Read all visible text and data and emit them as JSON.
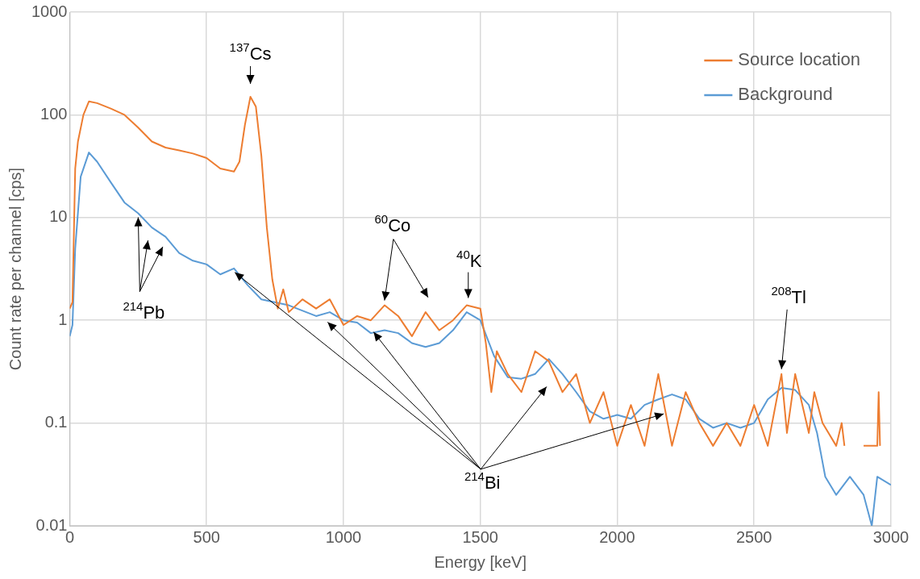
{
  "chart_data": {
    "type": "line",
    "xlabel": "Energy [keV]",
    "ylabel": "Count rate per channel [cps]",
    "log": "y",
    "grid": true,
    "legend": "top right",
    "marker": "none",
    "line_style": "solid",
    "xlim": [
      0,
      3000
    ],
    "xticks": [
      0,
      500,
      1000,
      1500,
      2000,
      2500,
      3000
    ],
    "ylim": [
      0.01,
      1000
    ],
    "yticks": [
      0.01,
      0.1,
      1,
      10,
      100,
      1000
    ],
    "series": [
      {
        "name": "Source location",
        "color": "#ed7d31",
        "x": [
          0,
          10,
          20,
          30,
          50,
          70,
          100,
          150,
          200,
          250,
          300,
          350,
          400,
          450,
          500,
          550,
          600,
          620,
          640,
          660,
          680,
          700,
          720,
          740,
          760,
          780,
          800,
          850,
          900,
          950,
          1000,
          1050,
          1100,
          1150,
          1200,
          1250,
          1300,
          1350,
          1400,
          1450,
          1500,
          1520,
          1540,
          1560,
          1600,
          1650,
          1700,
          1750,
          1800,
          1850,
          1900,
          1950,
          2000,
          2050,
          2100,
          2150,
          2200,
          2250,
          2300,
          2350,
          2400,
          2450,
          2500,
          2550,
          2600,
          2620,
          2650,
          2700,
          2720,
          2750,
          2800,
          2820,
          2830,
          2860,
          2900,
          2950,
          2955,
          2960
        ],
        "values": [
          1.3,
          1.5,
          30,
          55,
          100,
          135,
          130,
          115,
          100,
          75,
          55,
          48,
          45,
          42,
          38,
          30,
          28,
          35,
          80,
          150,
          120,
          40,
          8,
          2.5,
          1.3,
          2,
          1.2,
          1.6,
          1.3,
          1.6,
          0.9,
          1.1,
          1,
          1.4,
          1.1,
          0.7,
          1.2,
          0.8,
          1,
          1.4,
          1.3,
          0.6,
          0.2,
          0.5,
          0.3,
          0.2,
          0.5,
          0.4,
          0.2,
          0.3,
          0.1,
          0.2,
          0.06,
          0.15,
          0.06,
          0.3,
          0.06,
          0.2,
          0.1,
          0.06,
          0.1,
          0.06,
          0.15,
          0.06,
          0.3,
          0.08,
          0.3,
          0.08,
          0.2,
          0.1,
          0.06,
          0.1,
          0.06,
          null,
          0.06,
          0.06,
          0.2,
          0.06
        ]
      },
      {
        "name": "Background",
        "color": "#5b9bd5",
        "x": [
          0,
          10,
          20,
          40,
          70,
          100,
          150,
          200,
          250,
          300,
          350,
          400,
          450,
          500,
          550,
          600,
          650,
          700,
          800,
          900,
          950,
          1000,
          1050,
          1100,
          1150,
          1200,
          1250,
          1300,
          1350,
          1400,
          1450,
          1500,
          1550,
          1600,
          1650,
          1700,
          1750,
          1800,
          1850,
          1900,
          1950,
          2000,
          2050,
          2100,
          2150,
          2200,
          2250,
          2300,
          2350,
          2400,
          2450,
          2500,
          2550,
          2600,
          2650,
          2700,
          2730,
          2760,
          2800,
          2850,
          2900,
          2930,
          2950,
          3000
        ],
        "values": [
          0.7,
          0.9,
          5,
          25,
          43,
          35,
          22,
          14,
          11,
          8,
          6.5,
          4.5,
          3.8,
          3.5,
          2.8,
          3.2,
          2.2,
          1.6,
          1.4,
          1.1,
          1.2,
          1,
          0.95,
          0.75,
          0.8,
          0.75,
          0.6,
          0.55,
          0.6,
          0.8,
          1.2,
          1,
          0.45,
          0.28,
          0.27,
          0.3,
          0.42,
          0.3,
          0.2,
          0.13,
          0.11,
          0.12,
          0.11,
          0.15,
          0.17,
          0.19,
          0.17,
          0.11,
          0.09,
          0.1,
          0.09,
          0.1,
          0.17,
          0.22,
          0.21,
          0.15,
          0.08,
          0.03,
          0.02,
          0.03,
          0.02,
          0.01,
          0.03,
          0.025
        ]
      }
    ],
    "annotations": [
      {
        "text": "$^{137}$Cs",
        "x": 660,
        "y": 150
      },
      {
        "text": "$^{60}$Co",
        "x": 1150,
        "y": 1.4
      },
      {
        "text": "$^{40}$K",
        "x": 1450,
        "y": 1.4
      },
      {
        "text": "$^{208}$Tl",
        "x": 2600,
        "y": 0.3
      },
      {
        "text": "$^{214}$Pb",
        "x": 250,
        "y": 11
      },
      {
        "text": "$^{214}$Bi",
        "x": 600,
        "y": 3.2
      }
    ]
  }
}
